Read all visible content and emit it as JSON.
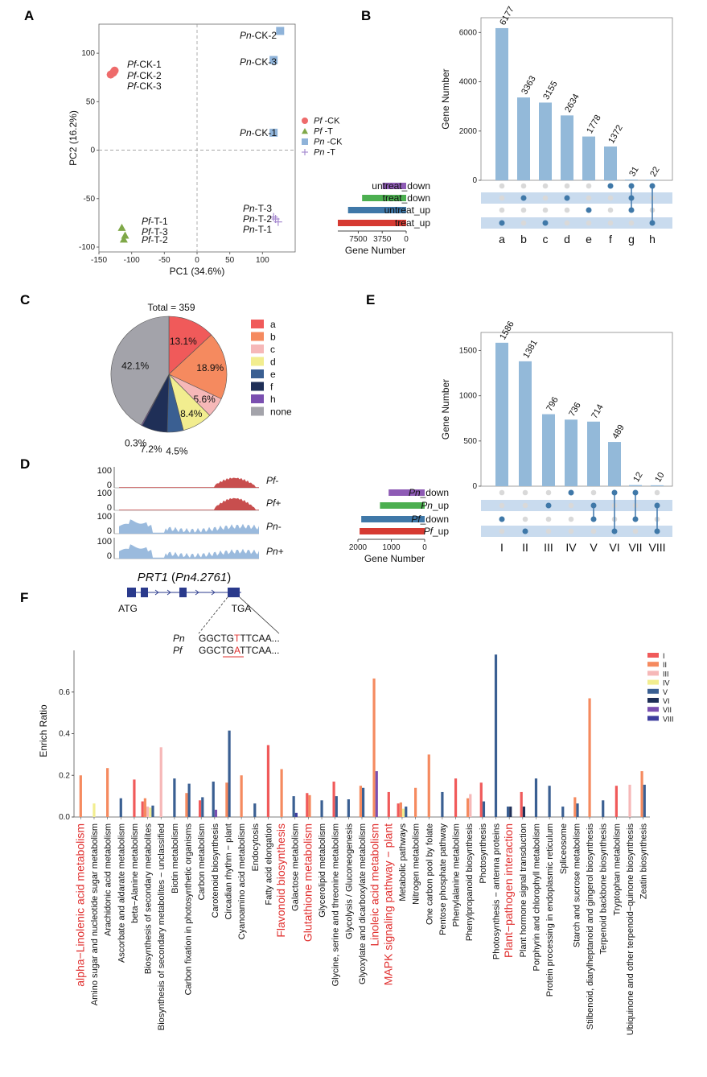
{
  "panels": {
    "A": "A",
    "B": "B",
    "C": "C",
    "D": "D",
    "E": "E",
    "F": "F"
  },
  "chart_data": [
    {
      "id": "A",
      "type": "scatter",
      "xlabel": "PC1 (34.6%)",
      "ylabel": "PC2 (16.2%)",
      "xlim": [
        -150,
        150
      ],
      "ylim": [
        -105,
        130
      ],
      "xticks": [
        "-150",
        "-100",
        "-50",
        "0",
        "50",
        "100"
      ],
      "yticks": [
        "100",
        "50",
        "0",
        "-50",
        "-100"
      ],
      "reference_lines": "dashed at x=0 and y=0",
      "legend_position": "right",
      "series": [
        {
          "name": "Pf -CK",
          "legend": [
            "Pf",
            "-CK"
          ],
          "color": "#ee6b6b",
          "marker": "circle",
          "x": [
            -132,
            -128,
            -126
          ],
          "y": [
            78,
            80,
            82
          ],
          "labels": [
            "Pf-CK-1",
            "Pf-CK-2",
            "Pf-CK-3"
          ]
        },
        {
          "name": "Pf -T",
          "legend": [
            "Pf",
            "-T"
          ],
          "color": "#7fa848",
          "marker": "triangle",
          "x": [
            -115,
            -112,
            -110
          ],
          "y": [
            -80,
            -92,
            -88
          ],
          "labels": [
            "Pf-T-1",
            "Pf-T-3",
            "Pf-T-2"
          ]
        },
        {
          "name": "Pn -CK",
          "legend": [
            "Pn",
            "-CK"
          ],
          "color": "#8fb3d9",
          "marker": "square",
          "x": [
            127,
            117,
            117
          ],
          "y": [
            123,
            93,
            18
          ],
          "labels": [
            "Pn-CK-2",
            "Pn-CK-3",
            "Pn-CK-1"
          ]
        },
        {
          "name": "Pn -T",
          "legend": [
            "Pn",
            "-T"
          ],
          "color": "#a78bd0",
          "marker": "plus",
          "x": [
            117,
            120,
            124
          ],
          "y": [
            -69,
            -71,
            -74
          ],
          "labels": [
            "Pn-T-3",
            "Pn-T-2",
            "Pn-T-1"
          ]
        }
      ]
    },
    {
      "id": "B",
      "type": "bar",
      "subtype": "upset",
      "ylabel": "Gene Number",
      "xlabel_sets": "Gene Number",
      "ylim": [
        0,
        6600
      ],
      "yticks": [
        "0",
        "2000",
        "4000",
        "6000"
      ],
      "categories": [
        "a",
        "b",
        "c",
        "d",
        "e",
        "f",
        "g",
        "h"
      ],
      "values": [
        6177,
        3363,
        3155,
        2634,
        1778,
        1372,
        31,
        22
      ],
      "sets": [
        {
          "name": "untreat_down",
          "size": 3700,
          "color": "#8e5bb5"
        },
        {
          "name": "treat_down",
          "size": 6900,
          "color": "#4caf50"
        },
        {
          "name": "untreat_up",
          "size": 9100,
          "color": "#3f78a8"
        },
        {
          "name": "treat_up",
          "size": 10700,
          "color": "#d63a32"
        }
      ],
      "set_axis_max": 10700,
      "set_ticks": [
        "7500",
        "3750",
        "0"
      ],
      "membership": [
        [
          3
        ],
        [
          1
        ],
        [
          3
        ],
        [
          1
        ],
        [
          2
        ],
        [
          0
        ],
        [
          0,
          1,
          2
        ],
        [
          0,
          3
        ]
      ]
    },
    {
      "id": "C",
      "type": "pie",
      "title": "Total = 359",
      "slices": [
        {
          "name": "a",
          "value": 13.1,
          "label": "13.1%",
          "color": "#f05a5a"
        },
        {
          "name": "b",
          "value": 18.9,
          "label": "18.9%",
          "color": "#f58a5f"
        },
        {
          "name": "c",
          "value": 5.6,
          "label": "5.6%",
          "color": "#f6b8b8"
        },
        {
          "name": "d",
          "value": 8.4,
          "label": "8.4%",
          "color": "#f2ed8f"
        },
        {
          "name": "e",
          "value": 4.5,
          "label": "4.5%",
          "color": "#3a5f92"
        },
        {
          "name": "f",
          "value": 7.2,
          "label": "7.2%",
          "color": "#1f2f57"
        },
        {
          "name": "h",
          "value": 0.3,
          "label": "0.3%",
          "color": "#7a4fb0"
        },
        {
          "name": "none",
          "value": 42.1,
          "label": "42.1%",
          "color": "#a3a3aa"
        }
      ],
      "legend_position": "right"
    },
    {
      "id": "E",
      "type": "bar",
      "subtype": "upset",
      "ylabel": "Gene Number",
      "xlabel_sets": "Gene Number",
      "ylim": [
        0,
        1700
      ],
      "yticks": [
        "0",
        "500",
        "1000",
        "1500"
      ],
      "categories": [
        "I",
        "II",
        "III",
        "IV",
        "V",
        "VI",
        "VII",
        "VIII"
      ],
      "values": [
        1586,
        1381,
        796,
        736,
        714,
        489,
        12,
        10
      ],
      "sets": [
        {
          "name": "_down",
          "species": "Pn",
          "size": 1080,
          "color": "#8e5bb5"
        },
        {
          "name": "_up",
          "species": "Pn",
          "size": 1340,
          "color": "#4caf50"
        },
        {
          "name": "_down",
          "species": "Pf",
          "size": 1900,
          "color": "#3f78a8"
        },
        {
          "name": "_up",
          "species": "Pf",
          "size": 1950,
          "color": "#d63a32"
        }
      ],
      "set_axis_max": 2000,
      "set_ticks": [
        "2000",
        "1000",
        "0"
      ],
      "membership": [
        [
          2
        ],
        [
          3
        ],
        [
          1
        ],
        [
          0
        ],
        [
          1,
          2
        ],
        [
          0,
          3
        ],
        [
          0,
          2
        ],
        [
          1,
          3
        ]
      ]
    },
    {
      "id": "F",
      "type": "bar",
      "ylabel": "Enrich Ratio",
      "ylim": [
        0,
        0.8
      ],
      "yticks": [
        "0.6",
        "0.4",
        "0.2",
        "0.0"
      ],
      "legend_position": "top-right",
      "series": [
        {
          "name": "I",
          "color": "#f05a5a"
        },
        {
          "name": "II",
          "color": "#f58a5f"
        },
        {
          "name": "III",
          "color": "#f6b8b8"
        },
        {
          "name": "IV",
          "color": "#f2ed8f"
        },
        {
          "name": "V",
          "color": "#3a5f92"
        },
        {
          "name": "VI",
          "color": "#1f2f57"
        },
        {
          "name": "VII",
          "color": "#7a4fb0"
        },
        {
          "name": "VIII",
          "color": "#3e3e9e"
        }
      ],
      "categories": [
        {
          "name": "alpha−Linolenic acid metabolism",
          "highlight": true,
          "bars": [
            {
              "s": 1,
              "v": 0.2
            }
          ]
        },
        {
          "name": "Amino sugar and nucleotide sugar metabolism",
          "bars": [
            {
              "s": 3,
              "v": 0.065
            }
          ]
        },
        {
          "name": "Arachidonic acid metabolism",
          "bars": [
            {
              "s": 1,
              "v": 0.235
            }
          ]
        },
        {
          "name": "Ascorbate and aldarate metabolism",
          "bars": [
            {
              "s": 4,
              "v": 0.09
            }
          ]
        },
        {
          "name": "beta−Alanine metabolism",
          "bars": [
            {
              "s": 0,
              "v": 0.18
            }
          ]
        },
        {
          "name": "Biosynthesis of secondary metabolites",
          "bars": [
            {
              "s": 0,
              "v": 0.075
            },
            {
              "s": 1,
              "v": 0.09
            },
            {
              "s": 2,
              "v": 0.05
            },
            {
              "s": 3,
              "v": 0.045
            },
            {
              "s": 4,
              "v": 0.055
            }
          ]
        },
        {
          "name": "Biosynthesis of secondary metabolites − unclassified",
          "bars": [
            {
              "s": 2,
              "v": 0.335
            }
          ]
        },
        {
          "name": "Biotin metabolism",
          "bars": [
            {
              "s": 4,
              "v": 0.185
            }
          ]
        },
        {
          "name": "Carbon fixation in photosynthetic organisms",
          "bars": [
            {
              "s": 1,
              "v": 0.115
            },
            {
              "s": 4,
              "v": 0.16
            }
          ]
        },
        {
          "name": "Carbon metabolism",
          "bars": [
            {
              "s": 0,
              "v": 0.08
            },
            {
              "s": 4,
              "v": 0.095
            }
          ]
        },
        {
          "name": "Carotenoid biosynthesis",
          "bars": [
            {
              "s": 4,
              "v": 0.17
            },
            {
              "s": 6,
              "v": 0.035
            }
          ]
        },
        {
          "name": "Circadian rhythm − plant",
          "bars": [
            {
              "s": 1,
              "v": 0.165
            },
            {
              "s": 4,
              "v": 0.415
            }
          ]
        },
        {
          "name": "Cyanoamino acid metabolism",
          "bars": [
            {
              "s": 1,
              "v": 0.2
            }
          ]
        },
        {
          "name": "Endocytosis",
          "bars": [
            {
              "s": 4,
              "v": 0.065
            }
          ]
        },
        {
          "name": "Fatty acid elongation",
          "bars": [
            {
              "s": 0,
              "v": 0.345
            }
          ]
        },
        {
          "name": "Flavonoid biosynthesis",
          "highlight": true,
          "bars": [
            {
              "s": 1,
              "v": 0.23
            }
          ]
        },
        {
          "name": "Galactose metabolism",
          "bars": [
            {
              "s": 4,
              "v": 0.1
            },
            {
              "s": 7,
              "v": 0.02
            }
          ]
        },
        {
          "name": "Glutathione metabolism",
          "highlight": true,
          "bars": [
            {
              "s": 0,
              "v": 0.115
            },
            {
              "s": 1,
              "v": 0.105
            }
          ]
        },
        {
          "name": "Glycerolipid metabolism",
          "bars": [
            {
              "s": 4,
              "v": 0.08
            }
          ]
        },
        {
          "name": "Glycine, serine and threonine metabolism",
          "bars": [
            {
              "s": 0,
              "v": 0.17
            },
            {
              "s": 4,
              "v": 0.1
            }
          ]
        },
        {
          "name": "Glycolysis / Gluconeogenesis",
          "bars": [
            {
              "s": 4,
              "v": 0.085
            }
          ]
        },
        {
          "name": "Glyoxylate and dicarboxylate metabolism",
          "bars": [
            {
              "s": 1,
              "v": 0.15
            },
            {
              "s": 4,
              "v": 0.14
            }
          ]
        },
        {
          "name": "Linoleic acid metabolism",
          "highlight": true,
          "bars": [
            {
              "s": 1,
              "v": 0.665
            },
            {
              "s": 6,
              "v": 0.22
            }
          ]
        },
        {
          "name": "MAPK signaling pathway − plant",
          "highlight": true,
          "bars": [
            {
              "s": 0,
              "v": 0.12
            }
          ]
        },
        {
          "name": "Metabolic pathways",
          "bars": [
            {
              "s": 0,
              "v": 0.065
            },
            {
              "s": 1,
              "v": 0.07
            },
            {
              "s": 3,
              "v": 0.04
            },
            {
              "s": 4,
              "v": 0.05
            }
          ]
        },
        {
          "name": "Nitrogen metabolism",
          "bars": [
            {
              "s": 1,
              "v": 0.14
            }
          ]
        },
        {
          "name": "One carbon pool by folate",
          "bars": [
            {
              "s": 1,
              "v": 0.3
            }
          ]
        },
        {
          "name": "Pentose phosphate pathway",
          "bars": [
            {
              "s": 4,
              "v": 0.12
            }
          ]
        },
        {
          "name": "Phenylalanine metabolism",
          "bars": [
            {
              "s": 0,
              "v": 0.185
            }
          ]
        },
        {
          "name": "Phenylpropanoid biosynthesis",
          "bars": [
            {
              "s": 1,
              "v": 0.09
            },
            {
              "s": 2,
              "v": 0.11
            }
          ]
        },
        {
          "name": "Photosynthesis",
          "bars": [
            {
              "s": 0,
              "v": 0.165
            },
            {
              "s": 4,
              "v": 0.075
            }
          ]
        },
        {
          "name": "Photosynthesis − antenna proteins",
          "bars": [
            {
              "s": 4,
              "v": 0.78
            }
          ]
        },
        {
          "name": "Plant−pathogen interaction",
          "highlight": true,
          "bars": [
            {
              "s": 4,
              "v": 0.05
            },
            {
              "s": 5,
              "v": 0.05
            }
          ]
        },
        {
          "name": "Plant hormone signal transduction",
          "bars": [
            {
              "s": 0,
              "v": 0.12
            },
            {
              "s": 5,
              "v": 0.05
            }
          ]
        },
        {
          "name": "Porphyrin and chlorophyll metabolism",
          "bars": [
            {
              "s": 4,
              "v": 0.185
            }
          ]
        },
        {
          "name": "Protein processing in endoplasmic reticulum",
          "bars": [
            {
              "s": 4,
              "v": 0.15
            }
          ]
        },
        {
          "name": "Spliceosome",
          "bars": [
            {
              "s": 4,
              "v": 0.05
            }
          ]
        },
        {
          "name": "Starch and sucrose metabolism",
          "bars": [
            {
              "s": 1,
              "v": 0.095
            },
            {
              "s": 4,
              "v": 0.065
            }
          ]
        },
        {
          "name": "Stilbenoid, diarylheptanoid and gingerol biosynthesis",
          "bars": [
            {
              "s": 1,
              "v": 0.57
            }
          ]
        },
        {
          "name": "Terpenoid backbone biosynthesis",
          "bars": [
            {
              "s": 4,
              "v": 0.08
            }
          ]
        },
        {
          "name": "Tryptophan metabolism",
          "bars": [
            {
              "s": 0,
              "v": 0.15
            }
          ]
        },
        {
          "name": "Ubiquinone and other terpenoid−quinone biosynthesis",
          "bars": [
            {
              "s": 2,
              "v": 0.155
            }
          ]
        },
        {
          "name": "Zeatin biosynthesis",
          "bars": [
            {
              "s": 1,
              "v": 0.22
            },
            {
              "s": 4,
              "v": 0.155
            }
          ]
        }
      ]
    }
  ],
  "panel_d": {
    "track_ymax": "100",
    "track_ymin": "0",
    "tracks": [
      {
        "name": "Pf",
        "suffix": "-",
        "color": "#c23b3b"
      },
      {
        "name": "Pf",
        "suffix": "+",
        "color": "#c23b3b"
      },
      {
        "name": "Pn",
        "suffix": "-",
        "color": "#8fb3d9"
      },
      {
        "name": "Pn",
        "suffix": "+",
        "color": "#8fb3d9"
      }
    ],
    "gene_name": "PRT1",
    "gene_id": "(Pn4.2761)",
    "start_codon": "ATG",
    "stop_codon": "TGA",
    "seq_rows": [
      {
        "species": "Pn",
        "pre": "GGCTG",
        "var": "T",
        "post": "TTCAA..."
      },
      {
        "species": "Pf",
        "pre": "GGCTG",
        "var": "A",
        "post": "TTCAA..."
      }
    ]
  }
}
